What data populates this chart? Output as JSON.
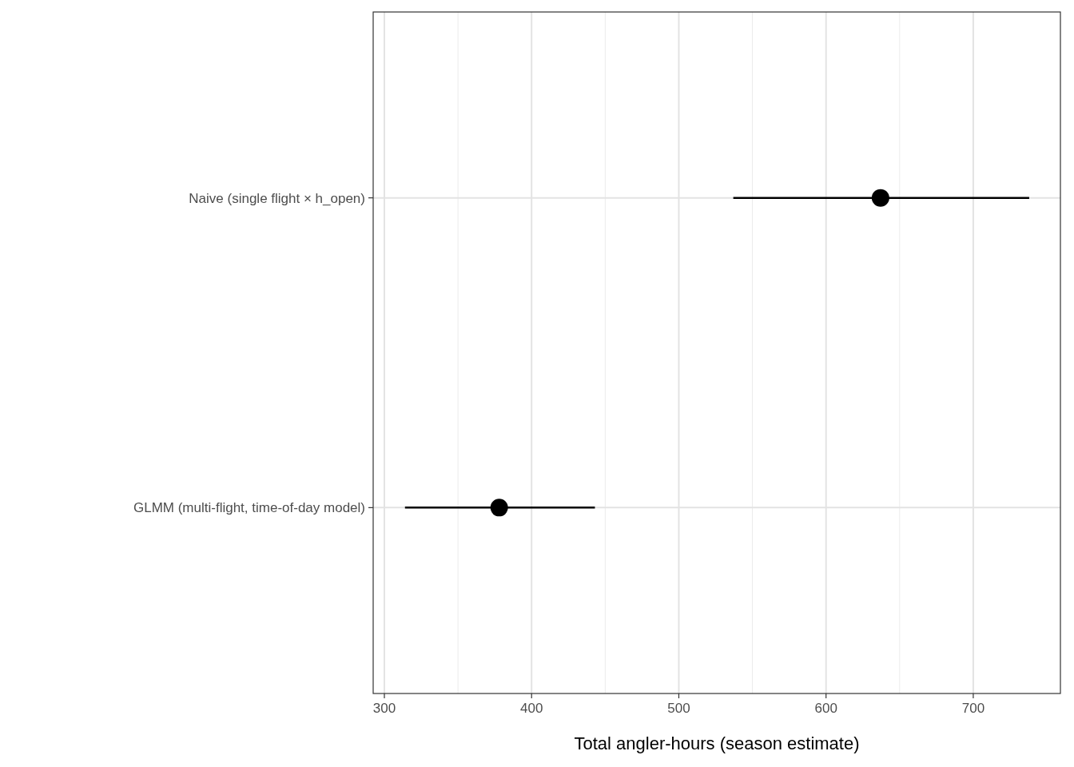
{
  "chart_data": {
    "type": "scatter",
    "orientation": "horizontal",
    "xlabel": "Total angler-hours (season estimate)",
    "categories": [
      "Naive (single flight × h_open)",
      "GLMM (multi-flight, time-of-day model)"
    ],
    "values": [
      637,
      378
    ],
    "errors": [
      [
        537,
        738
      ],
      [
        314,
        443
      ]
    ],
    "color": "#000000",
    "xlim": [
      292.4,
      759.2
    ],
    "xticks": [
      300,
      400,
      500,
      600,
      700
    ],
    "grid": true,
    "marker": "circle"
  }
}
